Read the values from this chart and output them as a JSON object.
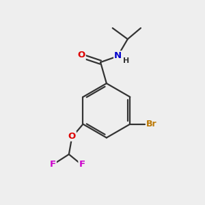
{
  "bg_color": "#eeeeee",
  "bond_color": "#333333",
  "atom_colors": {
    "O": "#dd0000",
    "N": "#0000cc",
    "Br": "#bb7700",
    "F": "#cc00cc",
    "H": "#333333",
    "C": "#333333"
  }
}
